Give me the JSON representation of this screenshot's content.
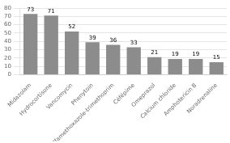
{
  "chart_data": {
    "type": "bar",
    "categories": [
      "Midazolam",
      "Hydrocortisone",
      "Vancomycin",
      "Phenytoin",
      "Sulfamethoxazole-trimethoprim",
      "Céfépime",
      "Omeprazol",
      "Calcium chloride",
      "Amphotericin B",
      "Noradrenaline"
    ],
    "values": [
      73,
      71,
      52,
      39,
      36,
      33,
      21,
      19,
      19,
      15
    ],
    "color": "#8c8c8c",
    "ylim": [
      0,
      80
    ],
    "yticks": [
      0,
      10,
      20,
      30,
      40,
      50,
      60,
      70,
      80
    ],
    "grid": true,
    "data_labels": true
  }
}
